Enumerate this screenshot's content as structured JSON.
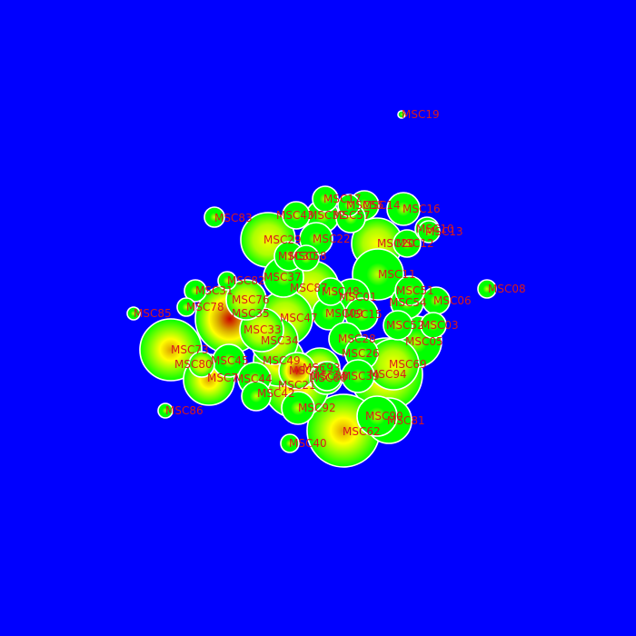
{
  "background_color": "#0000ff",
  "circle_edge_color": "#00ff00",
  "circle_mid_color": "#ffff00",
  "circle_core_color": "#cc0000",
  "outline_color": "#ffffff",
  "label_color": "#d81b1b",
  "nodes": [
    {
      "id": "MSC19",
      "label": "MSC19",
      "intensity": 0.1
    },
    {
      "id": "MSC83",
      "label": "MSC83",
      "intensity": 0.1
    },
    {
      "id": "MSC85",
      "label": "MSC85",
      "intensity": 0.1
    },
    {
      "id": "MSC08",
      "label": "MSC08",
      "intensity": 0.1
    },
    {
      "id": "MSC86",
      "label": "MSC86",
      "intensity": 0.1
    },
    {
      "id": "MSC40",
      "label": "MSC40",
      "intensity": 0.1
    },
    {
      "id": "MSC17",
      "label": "MSC17",
      "intensity": 0.2
    },
    {
      "id": "MSC55",
      "label": "MSC55",
      "intensity": 0.2
    },
    {
      "id": "MSC14",
      "label": "MSC14",
      "intensity": 0.2
    },
    {
      "id": "MSC43",
      "label": "MSC43",
      "intensity": 0.2
    },
    {
      "id": "MSC32",
      "label": "MSC32",
      "intensity": 0.2
    },
    {
      "id": "MSC57",
      "label": "MSC57",
      "intensity": 0.2
    },
    {
      "id": "MSC16",
      "label": "MSC16",
      "intensity": 0.2
    },
    {
      "id": "MSC10",
      "label": "MSC10",
      "intensity": 0.2
    },
    {
      "id": "MSC13",
      "label": "MSC13",
      "intensity": 0.2
    },
    {
      "id": "MSC12",
      "label": "MSC12",
      "intensity": 0.2
    },
    {
      "id": "MSC29",
      "label": "MSC29",
      "intensity": 0.25
    },
    {
      "id": "MSC22",
      "label": "MSC22",
      "intensity": 0.2
    },
    {
      "id": "MSC20",
      "label": "MSC20",
      "intensity": 0.25
    },
    {
      "id": "MSC30",
      "label": "MSC30",
      "intensity": 0.2
    },
    {
      "id": "MSC58",
      "label": "MSC58",
      "intensity": 0.2
    },
    {
      "id": "MSC37",
      "label": "MSC37",
      "intensity": 0.2
    },
    {
      "id": "MSC11",
      "label": "MSC11",
      "intensity": 0.2
    },
    {
      "id": "MSC82",
      "label": "MSC82",
      "intensity": 0.2
    },
    {
      "id": "MSC31",
      "label": "MSC31",
      "intensity": 0.2
    },
    {
      "id": "MSC51",
      "label": "MSC51",
      "intensity": 0.2
    },
    {
      "id": "MSC06",
      "label": "MSC06",
      "intensity": 0.2
    },
    {
      "id": "MSC76",
      "label": "MSC76",
      "intensity": 0.3
    },
    {
      "id": "MSC87",
      "label": "MSC87",
      "intensity": 0.3
    },
    {
      "id": "MSC48",
      "label": "MSC48",
      "intensity": 0.2
    },
    {
      "id": "MSC01",
      "label": "MSC01",
      "intensity": 0.2
    },
    {
      "id": "MSC54",
      "label": "MSC54",
      "intensity": 0.2
    },
    {
      "id": "MSC78",
      "label": "MSC78",
      "intensity": 0.1
    },
    {
      "id": "MSC35",
      "label": "MSC35",
      "intensity": 0.85
    },
    {
      "id": "MSC47",
      "label": "MSC47",
      "intensity": 0.3
    },
    {
      "id": "MSC09",
      "label": "MSC09",
      "intensity": 0.2
    },
    {
      "id": "MSC15",
      "label": "MSC15",
      "intensity": 0.2
    },
    {
      "id": "MSC52",
      "label": "MSC52",
      "intensity": 0.2
    },
    {
      "id": "MSC03",
      "label": "MSC03",
      "intensity": 0.2
    },
    {
      "id": "MSC33",
      "label": "MSC33",
      "intensity": 0.3
    },
    {
      "id": "MSC28",
      "label": "MSC28",
      "intensity": 0.2
    },
    {
      "id": "MSC34",
      "label": "MSC34",
      "intensity": 0.4
    },
    {
      "id": "MSC05",
      "label": "MSC05",
      "intensity": 0.2
    },
    {
      "id": "MSC73",
      "label": "MSC73",
      "intensity": 0.75
    },
    {
      "id": "MSC26",
      "label": "MSC26",
      "intensity": 0.2
    },
    {
      "id": "MSC45",
      "label": "MSC45",
      "intensity": 0.2
    },
    {
      "id": "MSC49",
      "label": "MSC49",
      "intensity": 0.5
    },
    {
      "id": "MSC80",
      "label": "MSC80",
      "intensity": 0.3
    },
    {
      "id": "MSC69",
      "label": "MSC69",
      "intensity": 0.3
    },
    {
      "id": "MSC93",
      "label": "MSC93",
      "intensity": 0.3
    },
    {
      "id": "MSC66",
      "label": "MSC66",
      "intensity": 0.3
    },
    {
      "id": "MSC94",
      "label": "MSC94",
      "intensity": 0.5
    },
    {
      "id": "MSC7x",
      "label": "MSC7",
      "intensity": 0.6
    },
    {
      "id": "MSC44",
      "label": "MSC44",
      "intensity": 0.2
    },
    {
      "id": "MSC88",
      "label": "MSC88",
      "intensity": 0.2
    },
    {
      "id": "MSC39",
      "label": "MSC39",
      "intensity": 0.2
    },
    {
      "id": "MSC21",
      "label": "MSC21",
      "intensity": 0.5
    },
    {
      "id": "MSC42",
      "label": "MSC42",
      "intensity": 0.2
    },
    {
      "id": "MSC92",
      "label": "MSC92",
      "intensity": 0.2
    },
    {
      "id": "MSC90",
      "label": "MSC90",
      "intensity": 0.2
    },
    {
      "id": "MSC81",
      "label": "MSC81",
      "intensity": 0.2
    },
    {
      "id": "MSC62",
      "label": "MSC62",
      "intensity": 0.6
    },
    {
      "id": "MSC71",
      "label": "MSC71",
      "intensity": 0.95
    }
  ]
}
